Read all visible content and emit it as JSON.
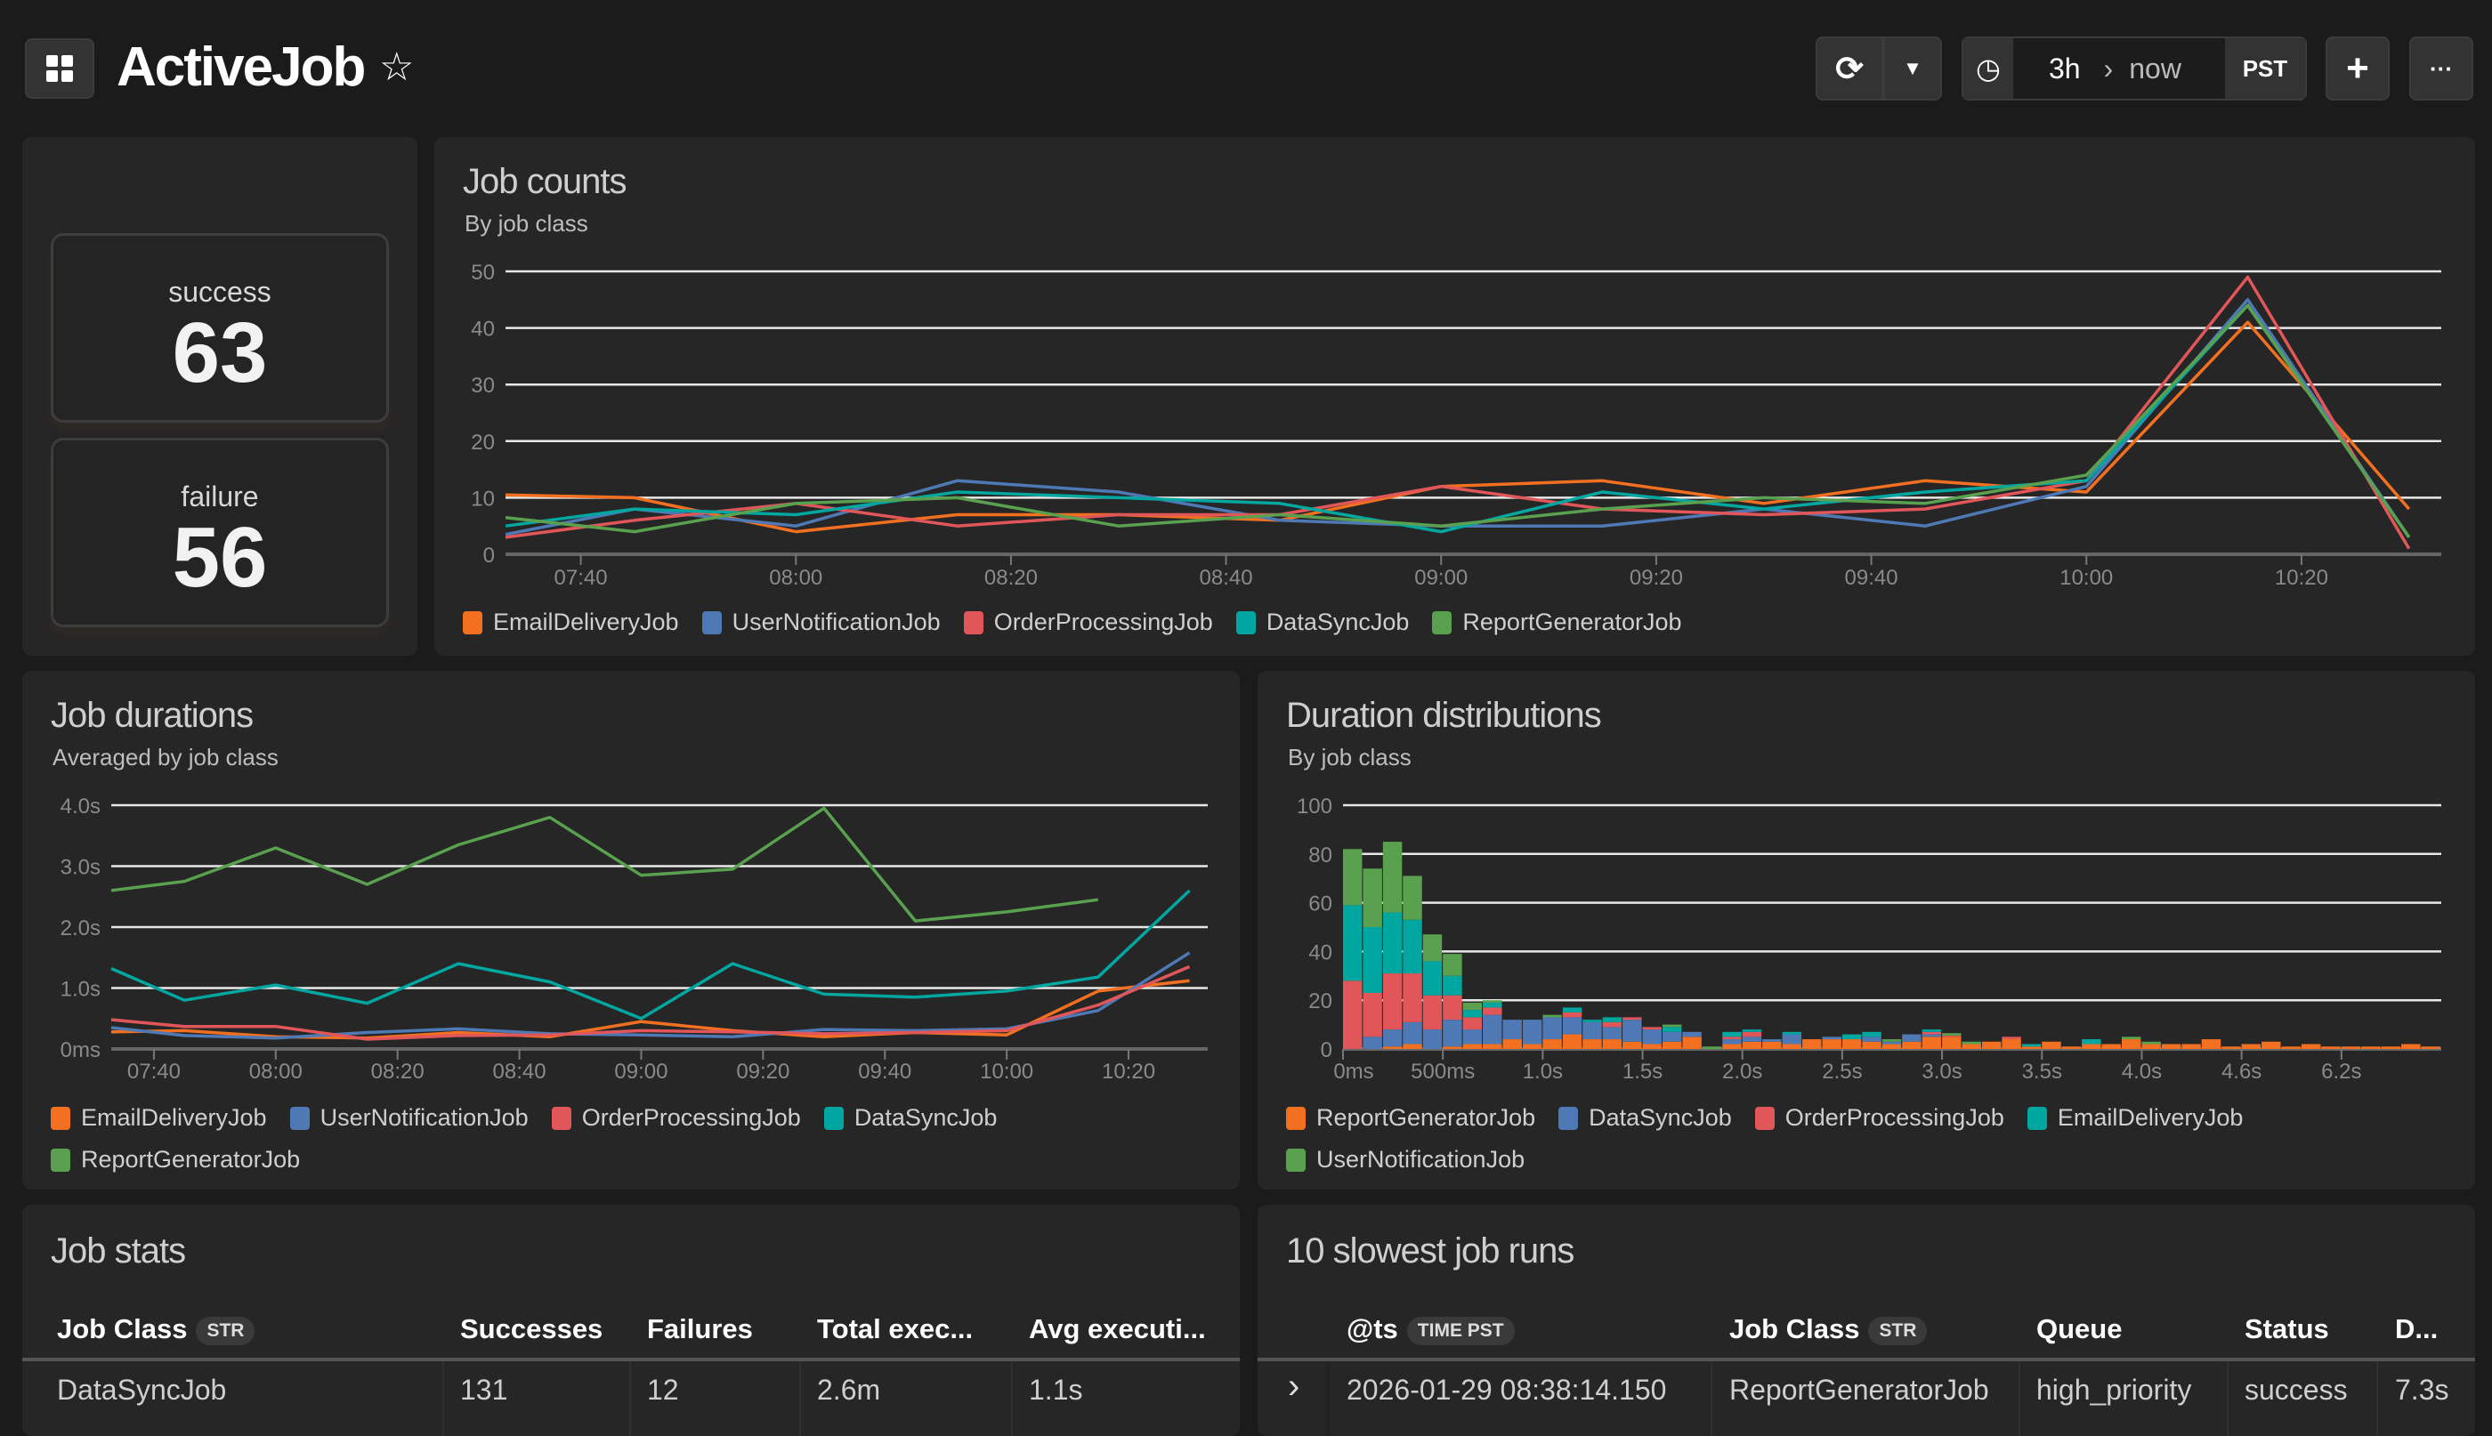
{
  "header": {
    "title": "ActiveJob",
    "star_icon": "star-outline-icon",
    "grid_icon": "dashboard-grid-icon",
    "refresh_icon": "refresh-icon",
    "dropdown_icon": "caret-down-icon",
    "clock_icon": "clock-icon",
    "time_from": "3h",
    "time_sep_icon": "chevron-right-icon",
    "time_to": "now",
    "timezone": "PST",
    "add_label": "+",
    "more_label": "···"
  },
  "stats": [
    {
      "label": "success",
      "value": "63"
    },
    {
      "label": "failure",
      "value": "56"
    }
  ],
  "colors": {
    "orange": "#f37021",
    "blue": "#4e79b5",
    "red": "#e15759",
    "teal": "#00a7a0",
    "green": "#59a14f"
  },
  "job_counts": {
    "title": "Job counts",
    "subtitle": "By job class"
  },
  "job_durations": {
    "title": "Job durations",
    "subtitle": "Averaged by job class"
  },
  "duration_dist": {
    "title": "Duration distributions",
    "subtitle": "By job class"
  },
  "chart_data": [
    {
      "type": "line",
      "title": "Job counts",
      "subtitle": "By job class",
      "ylim": [
        0,
        50
      ],
      "yticks": [
        "0",
        "10",
        "20",
        "30",
        "40",
        "50"
      ],
      "xticks": [
        "07:40",
        "08:00",
        "08:20",
        "08:40",
        "09:00",
        "09:20",
        "09:40",
        "10:00",
        "10:20"
      ],
      "xlim": [
        "07:33",
        "10:33"
      ],
      "grid": true,
      "legend": "bottom-left",
      "x": [
        "07:33",
        "07:45",
        "08:00",
        "08:15",
        "08:30",
        "08:45",
        "09:00",
        "09:15",
        "09:30",
        "09:45",
        "10:00",
        "10:15",
        "10:30"
      ],
      "series": [
        {
          "name": "EmailDeliveryJob",
          "color": "#f37021",
          "values": [
            10.5,
            10,
            4,
            7,
            7,
            6,
            12,
            13,
            9,
            13,
            11,
            41,
            8
          ]
        },
        {
          "name": "UserNotificationJob",
          "color": "#4e79b5",
          "values": [
            3.5,
            8,
            5,
            13,
            11,
            6,
            5,
            5,
            8,
            5,
            12,
            45,
            3
          ]
        },
        {
          "name": "OrderProcessingJob",
          "color": "#e15759",
          "values": [
            3,
            6,
            9,
            5,
            7,
            7,
            12,
            8,
            7,
            8,
            13,
            49,
            1
          ]
        },
        {
          "name": "DataSyncJob",
          "color": "#00a7a0",
          "values": [
            5,
            8,
            7,
            11,
            10,
            9,
            4,
            11,
            8,
            11,
            13,
            44,
            3
          ]
        },
        {
          "name": "ReportGeneratorJob",
          "color": "#59a14f",
          "values": [
            6.5,
            4,
            9,
            10,
            5,
            7,
            5,
            8,
            10,
            9,
            14,
            44,
            3
          ]
        }
      ]
    },
    {
      "type": "line",
      "title": "Job durations",
      "subtitle": "Averaged by job class",
      "ylim": [
        0,
        4
      ],
      "yticks": [
        "0ms",
        "1.0s",
        "2.0s",
        "3.0s",
        "4.0s"
      ],
      "xticks": [
        "07:40",
        "08:00",
        "08:20",
        "08:40",
        "09:00",
        "09:20",
        "09:40",
        "10:00",
        "10:20"
      ],
      "xlim": [
        "07:33",
        "10:33"
      ],
      "grid": true,
      "legend": "bottom-left",
      "x": [
        "07:33",
        "07:45",
        "08:00",
        "08:15",
        "08:30",
        "08:45",
        "09:00",
        "09:15",
        "09:30",
        "09:45",
        "10:00",
        "10:15",
        "10:30"
      ],
      "series": [
        {
          "name": "EmailDeliveryJob",
          "color": "#f37021",
          "values": [
            0.28,
            0.3,
            0.2,
            0.18,
            0.27,
            0.2,
            0.45,
            0.3,
            0.2,
            0.27,
            0.23,
            0.95,
            1.12
          ]
        },
        {
          "name": "UserNotificationJob",
          "color": "#4e79b5",
          "values": [
            0.35,
            0.22,
            0.18,
            0.27,
            0.33,
            0.25,
            0.23,
            0.2,
            0.32,
            0.3,
            0.33,
            0.63,
            1.58
          ]
        },
        {
          "name": "OrderProcessingJob",
          "color": "#e15759",
          "values": [
            0.48,
            0.37,
            0.37,
            0.16,
            0.22,
            0.23,
            0.3,
            0.28,
            0.25,
            0.27,
            0.3,
            0.72,
            1.35
          ]
        },
        {
          "name": "DataSyncJob",
          "color": "#00a7a0",
          "values": [
            1.32,
            0.8,
            1.05,
            0.75,
            1.4,
            1.1,
            0.5,
            1.4,
            0.9,
            0.85,
            0.95,
            1.18,
            2.6
          ]
        },
        {
          "name": "ReportGeneratorJob",
          "color": "#59a14f",
          "values": [
            2.6,
            2.75,
            3.3,
            2.7,
            3.35,
            3.8,
            2.85,
            2.95,
            3.95,
            2.1,
            2.25,
            2.45,
            null
          ]
        }
      ]
    },
    {
      "type": "bar",
      "stacked": true,
      "title": "Duration distributions",
      "subtitle": "By job class",
      "ylim": [
        0,
        100
      ],
      "yticks": [
        "0",
        "20",
        "40",
        "60",
        "80",
        "100"
      ],
      "xticks": [
        "0ms",
        "500ms",
        "1.0s",
        "1.5s",
        "2.0s",
        "2.5s",
        "3.0s",
        "3.5s",
        "4.0s",
        "4.6s",
        "6.2s"
      ],
      "grid": true,
      "legend": "bottom-left",
      "series": [
        {
          "name": "ReportGeneratorJob",
          "color": "#f37021",
          "values": [
            0,
            0,
            1,
            2,
            0,
            1,
            2,
            2,
            4,
            2,
            4,
            6,
            4,
            4,
            3,
            2,
            3,
            5,
            0,
            2,
            3,
            3,
            2,
            4,
            4,
            4,
            3,
            2,
            3,
            5,
            5,
            2,
            3,
            4,
            1,
            3,
            1,
            2,
            2,
            4,
            2,
            2,
            2,
            4,
            1,
            2,
            3,
            1,
            2,
            1,
            1,
            1,
            1,
            2,
            1
          ]
        },
        {
          "name": "DataSyncJob",
          "color": "#4e79b5",
          "values": [
            0,
            5,
            7,
            9,
            8,
            11,
            6,
            12,
            8,
            10,
            9,
            7,
            7,
            5,
            9,
            6,
            4,
            2,
            0,
            2,
            2,
            1,
            4,
            0,
            1,
            0,
            2,
            1,
            3,
            1,
            0,
            0,
            0,
            0,
            0,
            0,
            0,
            0,
            0,
            0,
            0,
            0,
            0,
            0,
            0,
            0,
            0,
            0,
            0,
            0,
            0,
            0,
            0,
            0,
            0
          ]
        },
        {
          "name": "OrderProcessingJob",
          "color": "#e15759",
          "values": [
            28,
            18,
            23,
            20,
            14,
            10,
            5,
            3,
            0,
            0,
            0,
            2,
            0,
            2,
            1,
            1,
            0,
            0,
            0,
            1,
            2,
            0,
            0,
            0,
            0,
            0,
            0,
            0,
            0,
            1,
            0.5,
            0,
            0,
            1,
            0,
            0,
            0,
            0,
            0,
            0,
            0,
            0,
            0,
            0,
            0,
            0,
            0,
            0,
            0,
            0,
            0,
            0,
            0,
            0,
            0
          ]
        },
        {
          "name": "EmailDeliveryJob",
          "color": "#00a7a0",
          "values": [
            31,
            27,
            25,
            22,
            14,
            8,
            3,
            2,
            0,
            0,
            0,
            2,
            1,
            2,
            0,
            0,
            2,
            0,
            0,
            2,
            1,
            0,
            1,
            0,
            0,
            2,
            2,
            0,
            0,
            1,
            0,
            0,
            0,
            0,
            1,
            0,
            0,
            2,
            0,
            0,
            0,
            0,
            0,
            0,
            0,
            0,
            0,
            0,
            0,
            0,
            0,
            0,
            0,
            0,
            0
          ]
        },
        {
          "name": "UserNotificationJob",
          "color": "#59a14f",
          "values": [
            23,
            24,
            29,
            18,
            11,
            9,
            3,
            1,
            0,
            0,
            1,
            0,
            0,
            0,
            0,
            0,
            1,
            0,
            1,
            0,
            0,
            0,
            0,
            0,
            0,
            0,
            0,
            1,
            0,
            0,
            1,
            1,
            0,
            0,
            0,
            0,
            0,
            0,
            0,
            1,
            1,
            0,
            0,
            0,
            0,
            0,
            0,
            0,
            0,
            0,
            0,
            0,
            0,
            0,
            0
          ]
        }
      ]
    }
  ],
  "job_stats": {
    "title": "Job stats",
    "columns": [
      {
        "label": "Job Class",
        "badge": "STR"
      },
      {
        "label": "Successes"
      },
      {
        "label": "Failures"
      },
      {
        "label": "Total exec..."
      },
      {
        "label": "Avg executi..."
      }
    ],
    "rows": [
      [
        "DataSyncJob",
        "131",
        "12",
        "2.6m",
        "1.1s"
      ]
    ]
  },
  "slowest": {
    "title": "10 slowest job runs",
    "columns": [
      {
        "label": "@ts",
        "badge": "TIME PST"
      },
      {
        "label": "Job Class",
        "badge": "STR"
      },
      {
        "label": "Queue"
      },
      {
        "label": "Status"
      },
      {
        "label": "D..."
      }
    ],
    "expand_icon": "chevron-right-icon",
    "rows": [
      [
        "2026-01-29 08:38:14.150",
        "ReportGeneratorJob",
        "high_priority",
        "success",
        "7.3s"
      ]
    ]
  }
}
